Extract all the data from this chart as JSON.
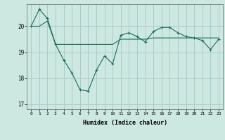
{
  "xlabel": "Humidex (Indice chaleur)",
  "ylabel": "",
  "background_color": "#cce8e0",
  "grid_color": "#aacccc",
  "line_color": "#1a6b5a",
  "xlim": [
    -0.5,
    23.5
  ],
  "ylim": [
    16.8,
    20.85
  ],
  "yticks": [
    17,
    18,
    19,
    20
  ],
  "xticks": [
    0,
    1,
    2,
    3,
    4,
    5,
    6,
    7,
    8,
    9,
    10,
    11,
    12,
    13,
    14,
    15,
    16,
    17,
    18,
    19,
    20,
    21,
    22,
    23
  ],
  "line1_x": [
    0,
    1,
    2,
    3,
    4,
    5,
    6,
    7,
    8,
    9,
    10,
    11,
    12,
    13,
    14,
    15,
    16,
    17,
    18,
    19,
    20,
    21,
    22,
    23
  ],
  "line1_y": [
    20.0,
    20.65,
    20.3,
    19.3,
    18.7,
    18.2,
    17.55,
    17.5,
    18.3,
    18.85,
    18.55,
    19.65,
    19.75,
    19.6,
    19.4,
    19.8,
    19.95,
    19.95,
    19.75,
    19.6,
    19.55,
    19.45,
    19.1,
    19.5
  ],
  "line2_x": [
    0,
    1,
    2,
    3,
    4,
    5,
    6,
    7,
    8,
    9,
    10,
    11,
    12,
    13,
    14,
    15,
    16,
    17,
    18,
    19,
    20,
    21,
    22,
    23
  ],
  "line2_y": [
    20.0,
    20.0,
    20.2,
    19.3,
    19.3,
    19.3,
    19.3,
    19.3,
    19.3,
    19.3,
    19.3,
    19.5,
    19.5,
    19.5,
    19.5,
    19.55,
    19.55,
    19.55,
    19.55,
    19.55,
    19.55,
    19.55,
    19.55,
    19.55
  ]
}
